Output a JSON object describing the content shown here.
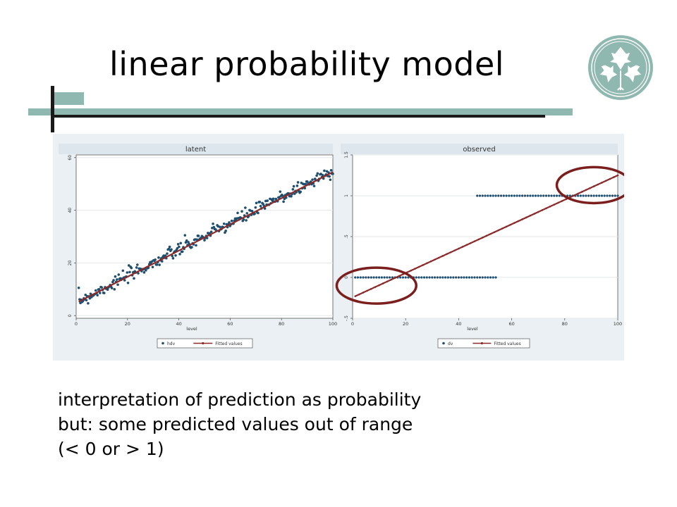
{
  "slide": {
    "title": "linear probability model",
    "caption_lines": [
      "interpretation of prediction as probability",
      "but: some predicted values out of range",
      "(< 0 or > 1)"
    ],
    "accent_color": "#8fb8b0",
    "logo_icon": "ivy-leaf-logo-icon"
  },
  "chart_data": [
    {
      "type": "scatter",
      "title": "latent",
      "xlabel": "level",
      "ylabel": "",
      "xlim": [
        0,
        100
      ],
      "ylim": [
        -1,
        61
      ],
      "xticks": [
        0,
        20,
        40,
        60,
        80,
        100
      ],
      "yticks": [
        0,
        20,
        40,
        60
      ],
      "grid": true,
      "legend_placement": "bottom",
      "series": [
        {
          "name": "hdv",
          "kind": "points",
          "color": "#1f4e6e",
          "intercept": 5,
          "slope": 0.5,
          "noise": 1.3,
          "n": 300
        },
        {
          "name": "Fitted values",
          "kind": "line",
          "color": "#8b2a2a",
          "x": [
            1,
            100
          ],
          "y": [
            5.3,
            54.5
          ]
        }
      ]
    },
    {
      "type": "scatter",
      "title": "observed",
      "xlabel": "level",
      "ylabel": "",
      "xlim": [
        0,
        100
      ],
      "ylim": [
        -0.5,
        1.5
      ],
      "xticks": [
        0,
        20,
        40,
        60,
        80,
        100
      ],
      "yticks": [
        -0.5,
        0,
        0.5,
        1,
        1.5
      ],
      "ytick_labels": [
        "-.5",
        "0",
        ".5",
        "1",
        "1.5"
      ],
      "grid": true,
      "legend_placement": "bottom",
      "series": [
        {
          "name": "dv",
          "kind": "points",
          "color": "#1f4e6e",
          "segments": [
            {
              "y": 0,
              "x_from": 1,
              "x_to": 54
            },
            {
              "y": 1,
              "x_from": 47,
              "x_to": 100
            }
          ],
          "step": 1
        },
        {
          "name": "Fitted values",
          "kind": "line",
          "color": "#8b2a2a",
          "x": [
            1,
            100
          ],
          "y": [
            -0.23,
            1.25
          ]
        }
      ],
      "highlights": [
        {
          "x": 9,
          "y": -0.1,
          "rx": 15,
          "ry": 0.22
        },
        {
          "x": 91,
          "y": 1.13,
          "rx": 14,
          "ry": 0.22
        }
      ]
    }
  ]
}
